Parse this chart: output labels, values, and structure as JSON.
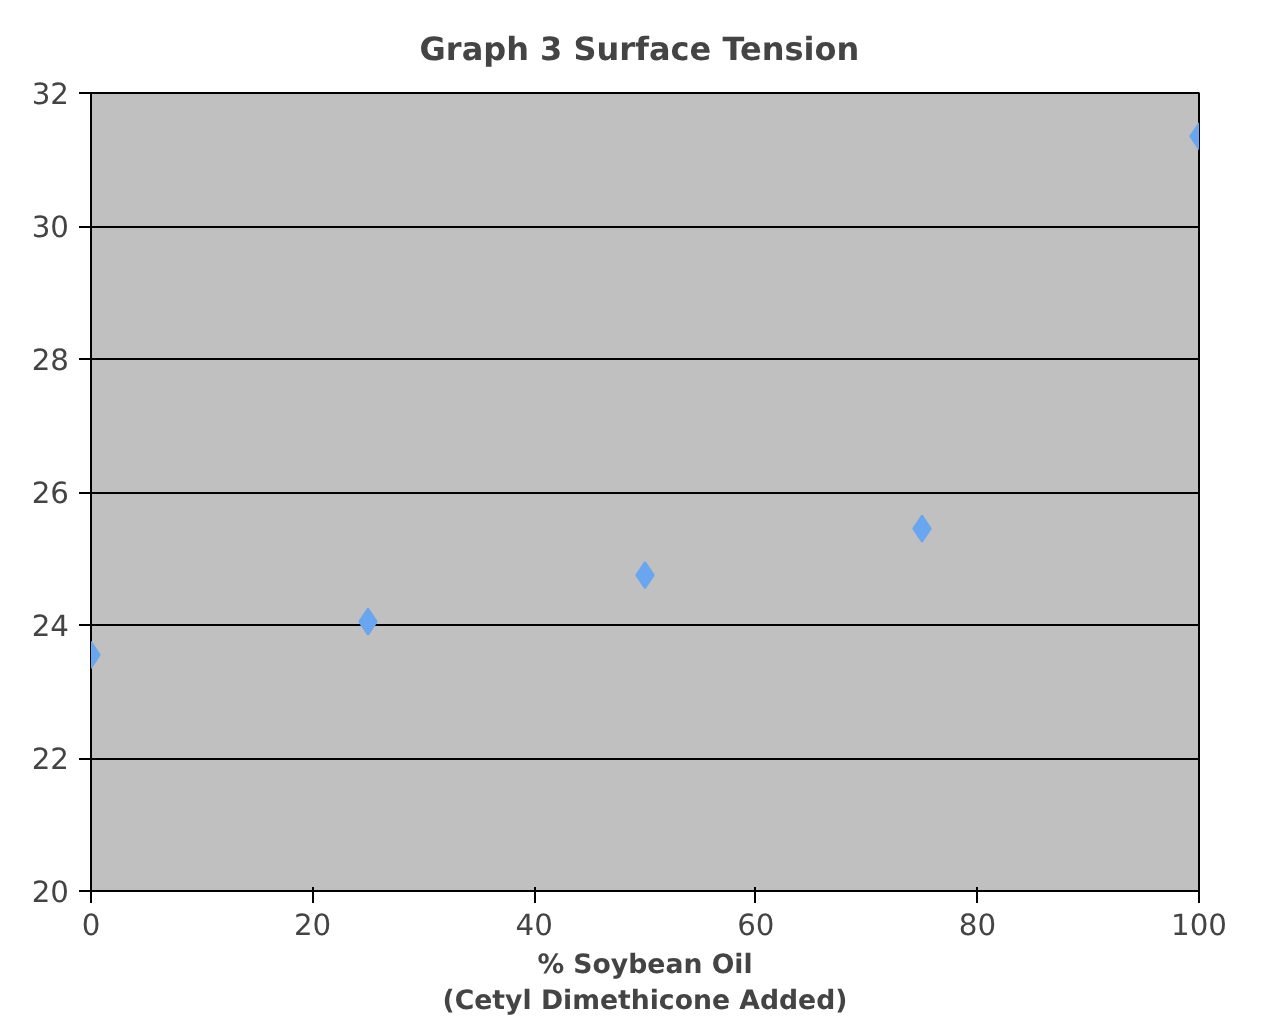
{
  "chart_data": {
    "type": "scatter",
    "title": "Graph 3  Surface Tension",
    "xlabel": "% Soybean Oil\n(Cetyl Dimethicone Added)",
    "x": [
      0,
      25,
      50,
      75,
      100
    ],
    "series": [
      {
        "color": "#6aa6f0",
        "values": [
          23.55,
          24.05,
          24.75,
          25.45,
          31.35
        ]
      }
    ],
    "xlim": [
      0,
      100
    ],
    "xticks": [
      0,
      20,
      40,
      60,
      80,
      100
    ],
    "ylim": [
      20,
      32
    ],
    "yticks": [
      20,
      22,
      24,
      26,
      28,
      30,
      32
    ],
    "grid": "y",
    "marker": "diamond"
  }
}
